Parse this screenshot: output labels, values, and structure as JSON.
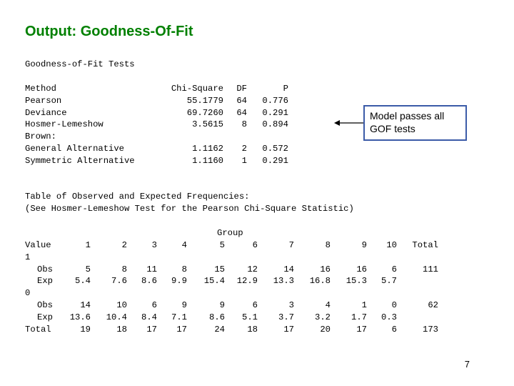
{
  "slide": {
    "title": "Output: Goodness-Of-Fit",
    "page_number": "7",
    "title_color": "#008000",
    "callout_border_color": "#3b5ba8"
  },
  "gof": {
    "heading": "Goodness-of-Fit Tests",
    "columns": [
      "Method",
      "Chi-Square",
      "DF",
      "P"
    ],
    "rows": [
      {
        "method": "Pearson",
        "chi": "55.1779",
        "df": "64",
        "p": "0.776"
      },
      {
        "method": "Deviance",
        "chi": "69.7260",
        "df": "64",
        "p": "0.291"
      },
      {
        "method": "Hosmer-Lemeshow",
        "chi": "3.5615",
        "df": "8",
        "p": "0.894"
      },
      {
        "method": "Brown:",
        "chi": "",
        "df": "",
        "p": ""
      },
      {
        "method": "General Alternative",
        "chi": "1.1162",
        "df": "2",
        "p": "0.572"
      },
      {
        "method": "Symmetric Alternative",
        "chi": "1.1160",
        "df": "1",
        "p": "0.291"
      }
    ]
  },
  "callout": {
    "line1": "Model passes all",
    "line2": "GOF tests"
  },
  "freq": {
    "heading1": "Table of Observed and Expected Frequencies:",
    "heading2": "(See Hosmer-Lemeshow Test for the Pearson Chi-Square Statistic)",
    "group_label": "Group",
    "value_label": "Value",
    "groups": [
      "1",
      "2",
      "3",
      "4",
      "5",
      "6",
      "7",
      "8",
      "9",
      "10"
    ],
    "total_label": "Total",
    "rows": [
      {
        "label": "1",
        "cells": [
          "",
          "",
          "",
          "",
          "",
          "",
          "",
          "",
          "",
          ""
        ],
        "total": ""
      },
      {
        "label": "Obs",
        "cells": [
          "5",
          "8",
          "11",
          "8",
          "15",
          "12",
          "14",
          "16",
          "16",
          "6"
        ],
        "total": "111"
      },
      {
        "label": "Exp",
        "cells": [
          "5.4",
          "7.6",
          "8.6",
          "9.9",
          "15.4",
          "12.9",
          "13.3",
          "16.8",
          "15.3",
          "5.7"
        ],
        "total": ""
      },
      {
        "label": "0",
        "cells": [
          "",
          "",
          "",
          "",
          "",
          "",
          "",
          "",
          "",
          ""
        ],
        "total": ""
      },
      {
        "label": "Obs",
        "cells": [
          "14",
          "10",
          "6",
          "9",
          "9",
          "6",
          "3",
          "4",
          "1",
          "0"
        ],
        "total": "62"
      },
      {
        "label": "Exp",
        "cells": [
          "13.6",
          "10.4",
          "8.4",
          "7.1",
          "8.6",
          "5.1",
          "3.7",
          "3.2",
          "1.7",
          "0.3"
        ],
        "total": ""
      },
      {
        "label": "Total",
        "cells": [
          "19",
          "18",
          "17",
          "17",
          "24",
          "18",
          "17",
          "20",
          "17",
          "6"
        ],
        "total": "173"
      }
    ]
  }
}
